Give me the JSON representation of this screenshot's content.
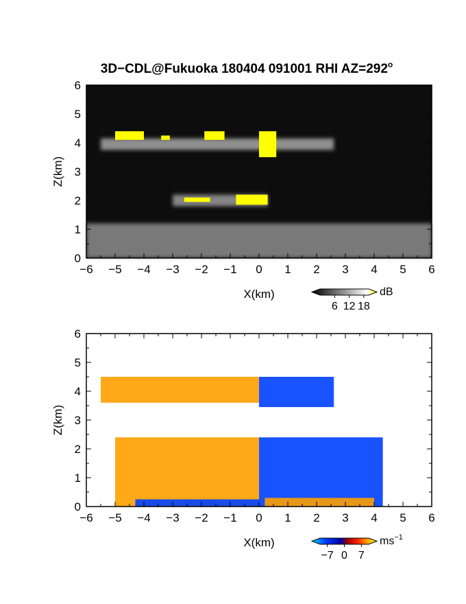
{
  "figure": {
    "title": "3D−CDL@Fukuoka 180404 091001 RHI AZ=292°",
    "title_main": "3D−CDL@Fukuoka 180404 091001 RHI AZ=292",
    "title_sup": "o"
  },
  "chart_data": [
    {
      "type": "heatmap",
      "variable": "intensity",
      "xlabel": "X(km)",
      "ylabel": "Z(km)",
      "xlim": [
        -6,
        6
      ],
      "ylim": [
        0,
        6
      ],
      "xticks": [
        "−6",
        "−5",
        "−4",
        "−3",
        "−2",
        "−1",
        "0",
        "1",
        "2",
        "3",
        "4",
        "5",
        "6"
      ],
      "yticks": [
        "0",
        "1",
        "2",
        "3",
        "4",
        "5",
        "6"
      ],
      "colorbar": {
        "unit": "dB",
        "ticks": [
          "6",
          "12",
          "18"
        ],
        "range": [
          0,
          20
        ],
        "colors": [
          "#000000",
          "#ffffff",
          "#ffff00"
        ]
      },
      "layers": [
        {
          "x0": -5.5,
          "x1": 2.6,
          "z_center": 3.95,
          "thickness": 0.4,
          "peak_db": 13
        },
        {
          "x0": -3.0,
          "x1": 0.3,
          "z_center": 2.0,
          "thickness": 0.4,
          "peak_db": 12
        },
        {
          "x0": -6.0,
          "x1": 6.0,
          "z_center": 0.6,
          "thickness": 1.2,
          "peak_db": 11
        }
      ],
      "saturated_patches": [
        {
          "x": [
            -5.0,
            -4.0
          ],
          "z": [
            4.1,
            4.4
          ]
        },
        {
          "x": [
            -3.4,
            -3.1
          ],
          "z": [
            4.1,
            4.25
          ]
        },
        {
          "x": [
            -1.9,
            -1.2
          ],
          "z": [
            4.1,
            4.4
          ]
        },
        {
          "x": [
            0.0,
            0.6
          ],
          "z": [
            3.5,
            4.4
          ]
        },
        {
          "x": [
            -2.6,
            -1.7
          ],
          "z": [
            1.95,
            2.1
          ]
        },
        {
          "x": [
            -0.8,
            0.3
          ],
          "z": [
            1.85,
            2.2
          ]
        }
      ]
    },
    {
      "type": "heatmap",
      "variable": "radial velocity",
      "xlabel": "X(km)",
      "ylabel": "Z(km)",
      "xlim": [
        -6,
        6
      ],
      "ylim": [
        0,
        6
      ],
      "xticks": [
        "−6",
        "−5",
        "−4",
        "−3",
        "−2",
        "−1",
        "0",
        "1",
        "2",
        "3",
        "4",
        "5",
        "6"
      ],
      "yticks": [
        "0",
        "1",
        "2",
        "3",
        "4",
        "5",
        "6"
      ],
      "colorbar": {
        "unit": "ms",
        "unit_sup": "−1",
        "ticks": [
          "−7",
          "0",
          "7"
        ],
        "range": [
          -10,
          10
        ],
        "colors": [
          "#00e0ff",
          "#0040ff",
          "#0000a0",
          "#a00000",
          "#ff2000",
          "#ffa000",
          "#ffff40"
        ]
      },
      "regions": [
        {
          "name": "upper-left layer",
          "x": [
            -5.5,
            0.0
          ],
          "z": [
            3.6,
            4.5
          ],
          "velocity_range": [
            4,
            9
          ]
        },
        {
          "name": "upper-right layer",
          "x": [
            0.0,
            2.6
          ],
          "z": [
            3.45,
            4.5
          ],
          "velocity_range": [
            -9,
            -6
          ]
        },
        {
          "name": "lower-left layer",
          "x": [
            -5.0,
            0.0
          ],
          "z": [
            0.0,
            2.4
          ],
          "velocity_range": [
            2,
            8
          ]
        },
        {
          "name": "lower-right layer",
          "x": [
            0.0,
            4.3
          ],
          "z": [
            0.0,
            2.4
          ],
          "velocity_range": [
            -9,
            -3
          ]
        },
        {
          "name": "near-surface band left",
          "x": [
            -4.3,
            0.0
          ],
          "z": [
            0.0,
            0.25
          ],
          "velocity_range": [
            -8,
            -6
          ]
        },
        {
          "name": "near-surface band right",
          "x": [
            0.2,
            4.0
          ],
          "z": [
            0.0,
            0.3
          ],
          "velocity_range": [
            5,
            8
          ]
        }
      ]
    }
  ]
}
